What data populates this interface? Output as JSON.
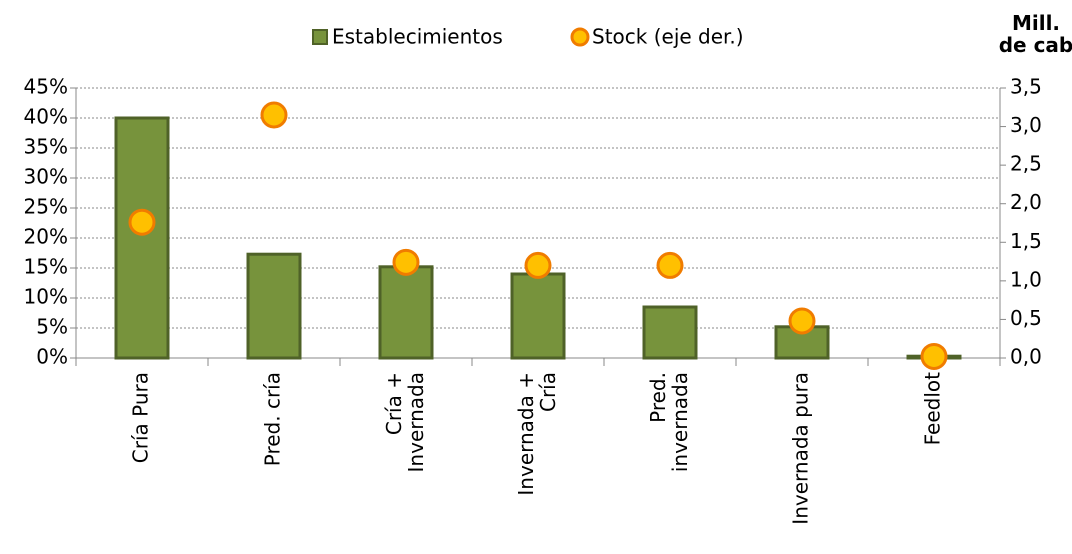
{
  "chart_data": {
    "type": "bar",
    "categories": [
      "Cría Pura",
      "Pred. cría",
      "Cría +\nInvernada",
      "Invernada +\nCría",
      "Pred.\ninvernada",
      "Invernada pura",
      "Feedlot"
    ],
    "series": [
      {
        "name": "Establecimientos",
        "type": "bar",
        "color": "#77933c",
        "values": [
          40,
          17.3,
          15.2,
          14,
          8.5,
          5.2,
          0.3
        ]
      },
      {
        "name": "Stock (eje der.)",
        "type": "scatter",
        "axis": "y2",
        "color": "#ffc000",
        "values": [
          1.76,
          3.15,
          1.24,
          1.2,
          1.2,
          0.48,
          0.02
        ]
      }
    ],
    "ylim": [
      0,
      45
    ],
    "yticks": [
      {
        "value": 0,
        "label": "0%"
      },
      {
        "value": 5,
        "label": "5%"
      },
      {
        "value": 10,
        "label": "10%"
      },
      {
        "value": 15,
        "label": "15%"
      },
      {
        "value": 20,
        "label": "20%"
      },
      {
        "value": 25,
        "label": "25%"
      },
      {
        "value": 30,
        "label": "30%"
      },
      {
        "value": 35,
        "label": "35%"
      },
      {
        "value": 40,
        "label": "40%"
      },
      {
        "value": 45,
        "label": "45%"
      }
    ],
    "y2lim": [
      0,
      3.5
    ],
    "y2ticks": [
      {
        "value": 0,
        "label": "0,0"
      },
      {
        "value": 0.5,
        "label": "0,5"
      },
      {
        "value": 1,
        "label": "1,0"
      },
      {
        "value": 1.5,
        "label": "1,5"
      },
      {
        "value": 2,
        "label": "2,0"
      },
      {
        "value": 2.5,
        "label": "2,5"
      },
      {
        "value": 3,
        "label": "3,0"
      },
      {
        "value": 3.5,
        "label": "3,5"
      }
    ],
    "y2_label": "Mill.\nde cab",
    "grid": true,
    "legend": "top"
  }
}
